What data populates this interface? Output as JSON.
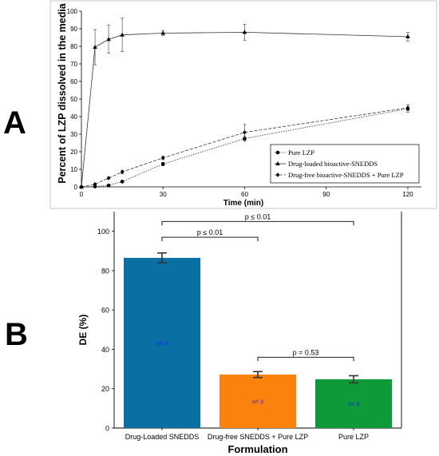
{
  "panels": {
    "a_label": "A",
    "b_label": "B"
  },
  "chart_data": [
    {
      "type": "line",
      "title": "",
      "xlabel": "Time (min)",
      "ylabel": "Percent of LZP dissolved in the media",
      "xlim": [
        0,
        125
      ],
      "ylim": [
        0,
        100
      ],
      "xticks": [
        "0",
        "30",
        "60",
        "90",
        "120"
      ],
      "yticks": [
        "0",
        "10",
        "20",
        "30",
        "40",
        "50",
        "60",
        "70",
        "80",
        "90",
        "100"
      ],
      "grid": false,
      "legend_position": "bottom-right",
      "series": [
        {
          "name": "Pure LZP",
          "marker": "circle",
          "line_style": "dotted",
          "x": [
            0,
            5,
            10,
            15,
            30,
            60,
            120
          ],
          "y": [
            0,
            0.2,
            0.8,
            3,
            13,
            27.5,
            44.5
          ],
          "error": [
            0,
            0,
            0,
            0.5,
            1,
            1.5,
            2
          ]
        },
        {
          "name": "Drug-loaded bioactive-SNEDDS",
          "marker": "triangle",
          "line_style": "solid",
          "x": [
            0,
            5,
            10,
            15,
            30,
            60,
            120
          ],
          "y": [
            0,
            79.5,
            84,
            86.5,
            87.5,
            88,
            85.5
          ],
          "error": [
            0,
            10,
            8,
            9.5,
            1.5,
            4.5,
            2.5
          ]
        },
        {
          "name": "Drug-free bioactive-SNEDDS + Pure LZP",
          "marker": "diamond",
          "line_style": "dashed",
          "x": [
            0,
            5,
            10,
            15,
            30,
            60,
            120
          ],
          "y": [
            0,
            1.5,
            5,
            8.5,
            16.5,
            31,
            45
          ],
          "error": [
            0,
            0.5,
            0.5,
            1,
            1,
            4.5,
            1.5
          ]
        }
      ]
    },
    {
      "type": "bar",
      "title": "",
      "xlabel": "Formulation",
      "ylabel": "DE (%)",
      "ylim": [
        0,
        110
      ],
      "yticks": [
        "0",
        "20",
        "40",
        "60",
        "80",
        "100"
      ],
      "grid": false,
      "categories": [
        "Drug-Loaded SNEDDS",
        "Drug-free SNEDDS + Pure LZP",
        "Pure LZP"
      ],
      "values": [
        86.5,
        27.2,
        24.8
      ],
      "errors": [
        2.5,
        1.5,
        1.8
      ],
      "colors": [
        "#0a6fa2",
        "#fb820d",
        "#0e9a39"
      ],
      "bar_labels": [
        "n= 3",
        "n= 3",
        "n= 3"
      ],
      "annotations": [
        {
          "text": "p ≤ 0.01",
          "from": 0,
          "to": 2,
          "y": 105
        },
        {
          "text": "p ≤ 0.01",
          "from": 0,
          "to": 1,
          "y": 97
        },
        {
          "text": "p = 0.53",
          "from": 1,
          "to": 2,
          "y": 36
        }
      ]
    }
  ]
}
